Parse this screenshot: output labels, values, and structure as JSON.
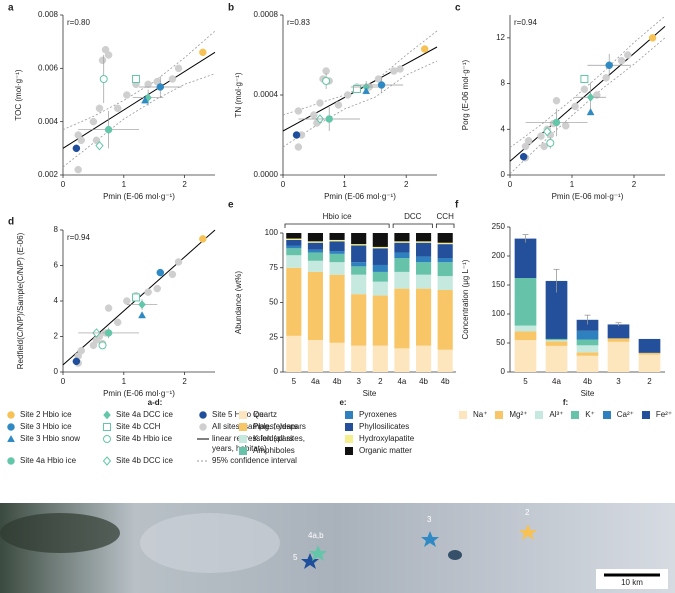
{
  "chart_data": [
    {
      "type": "scatter",
      "panel": "a",
      "annotation": "r=0.80",
      "xlabel": "Pmin (E-06 mol·g⁻¹)",
      "ylabel": "TOC (mol·g⁻¹)",
      "xlim": [
        0,
        2.5
      ],
      "xticks": [
        0,
        1,
        2
      ],
      "ylim": [
        0.002,
        0.008
      ],
      "yticks": [
        0.002,
        0.004,
        0.006,
        0.008
      ],
      "series": [
        {
          "x": [
            2.3
          ],
          "y": [
            0.0066
          ]
        },
        {
          "x": [
            1.6
          ],
          "y": [
            0.0053
          ],
          "xerr": [
            0.35
          ],
          "yerr": [
            0.0004
          ]
        },
        {
          "x": [
            1.35
          ],
          "y": [
            0.0048
          ]
        },
        {
          "x": [
            0.75
          ],
          "y": [
            0.0037
          ],
          "xerr": [
            0.5
          ],
          "yerr": [
            0.0007
          ]
        },
        {
          "x": [
            1.4
          ],
          "y": [
            0.0049
          ],
          "xerr": [
            0.25
          ],
          "yerr": [
            0.0003
          ]
        },
        {
          "x": [
            1.2
          ],
          "y": [
            0.0056
          ]
        },
        {
          "x": [
            0.67
          ],
          "y": [
            0.0056
          ],
          "yerr": [
            0.0009
          ]
        },
        {
          "x": [
            0.6
          ],
          "y": [
            0.0031
          ]
        },
        {
          "x": [
            0.22
          ],
          "y": [
            0.003
          ]
        },
        {
          "x": [
            0.25,
            0.3,
            0.55,
            0.6,
            0.65,
            0.7,
            0.75,
            0.9,
            1.05,
            1.2,
            1.4,
            1.55,
            1.8,
            1.9,
            0.25,
            0.5
          ],
          "y": [
            0.0035,
            0.0033,
            0.0033,
            0.0045,
            0.0063,
            0.0067,
            0.0065,
            0.0045,
            0.005,
            0.0054,
            0.0054,
            0.0055,
            0.0056,
            0.006,
            0.0022,
            0.004
          ]
        }
      ],
      "fit": {
        "x": [
          0,
          2.5
        ],
        "y": [
          0.003,
          0.0066
        ]
      },
      "ci": {
        "x": [
          0,
          0.5,
          1,
          1.5,
          2,
          2.5
        ],
        "lower": [
          0.0023,
          0.0032,
          0.0041,
          0.0048,
          0.0054,
          0.0058
        ],
        "upper": [
          0.0037,
          0.0042,
          0.0048,
          0.0055,
          0.0064,
          0.0074
        ]
      }
    },
    {
      "type": "scatter",
      "panel": "b",
      "annotation": "r=0.83",
      "xlabel": "Pmin (E-06 mol·g⁻¹)",
      "ylabel": "TN (mol·g⁻¹)",
      "xlim": [
        0,
        2.5
      ],
      "xticks": [
        0,
        1,
        2
      ],
      "ylim": [
        0,
        0.0008
      ],
      "yticks": [
        {
          "value": 0,
          "label": "0.0000"
        },
        0.0004,
        0.0008
      ],
      "series": [
        {
          "x": [
            2.3
          ],
          "y": [
            0.00063
          ]
        },
        {
          "x": [
            1.6
          ],
          "y": [
            0.00045
          ],
          "xerr": [
            0.35
          ],
          "yerr": [
            4e-05
          ]
        },
        {
          "x": [
            1.35
          ],
          "y": [
            0.00042
          ]
        },
        {
          "x": [
            0.75
          ],
          "y": [
            0.00028
          ],
          "xerr": [
            0.5
          ],
          "yerr": [
            6e-05
          ]
        },
        {
          "x": [
            1.35
          ],
          "y": [
            0.00044
          ],
          "xerr": [
            0.25
          ],
          "yerr": [
            3e-05
          ]
        },
        {
          "x": [
            1.2
          ],
          "y": [
            0.00043
          ]
        },
        {
          "x": [
            0.7
          ],
          "y": [
            0.00047
          ],
          "yerr": [
            4e-05
          ]
        },
        {
          "x": [
            0.6
          ],
          "y": [
            0.00028
          ]
        },
        {
          "x": [
            0.22
          ],
          "y": [
            0.0002
          ]
        },
        {
          "x": [
            0.25,
            0.3,
            0.55,
            0.6,
            0.65,
            0.7,
            0.75,
            0.9,
            1.05,
            1.2,
            1.4,
            1.55,
            1.8,
            1.9,
            0.25,
            0.5
          ],
          "y": [
            0.00032,
            0.0002,
            0.00026,
            0.00036,
            0.00048,
            0.00052,
            0.00047,
            0.00035,
            0.0004,
            0.00044,
            0.00044,
            0.00048,
            0.00052,
            0.00053,
            0.00014,
            0.0003
          ]
        }
      ],
      "fit": {
        "x": [
          0,
          2.5
        ],
        "y": [
          0.00022,
          0.00064
        ]
      },
      "ci": {
        "x": [
          0,
          0.5,
          1,
          1.5,
          2,
          2.5
        ],
        "lower": [
          0.00014,
          0.00024,
          0.00033,
          0.00039,
          0.0005,
          0.00057
        ],
        "upper": [
          0.0003,
          0.00035,
          0.0004,
          0.00047,
          0.0006,
          0.00072
        ]
      }
    },
    {
      "type": "scatter",
      "panel": "c",
      "annotation": "r=0.94",
      "xlabel": "Pmin (E-06 mol·g⁻¹)",
      "ylabel": "Porg (E-06 mol·g⁻¹)",
      "xlim": [
        0,
        2.5
      ],
      "xticks": [
        0,
        1,
        2
      ],
      "ylim": [
        0,
        14
      ],
      "yticks": [
        0,
        4,
        8,
        12
      ],
      "series": [
        {
          "x": [
            2.3
          ],
          "y": [
            12
          ]
        },
        {
          "x": [
            1.6
          ],
          "y": [
            9.6
          ],
          "xerr": [
            0.35
          ],
          "yerr": [
            1
          ]
        },
        {
          "x": [
            1.3
          ],
          "y": [
            5.5
          ]
        },
        {
          "x": [
            0.75
          ],
          "y": [
            4.6
          ],
          "xerr": [
            0.5
          ],
          "yerr": [
            1.2
          ]
        },
        {
          "x": [
            1.3
          ],
          "y": [
            6.8
          ],
          "xerr": [
            0.25
          ],
          "yerr": [
            1.3
          ]
        },
        {
          "x": [
            1.2
          ],
          "y": [
            8.4
          ]
        },
        {
          "x": [
            0.65
          ],
          "y": [
            2.8
          ],
          "yerr": [
            0.5
          ]
        },
        {
          "x": [
            0.6
          ],
          "y": [
            3.8
          ]
        },
        {
          "x": [
            0.22
          ],
          "y": [
            1.6
          ]
        },
        {
          "x": [
            0.25,
            0.3,
            0.55,
            0.6,
            0.65,
            0.7,
            0.75,
            0.9,
            1.05,
            1.2,
            1.4,
            1.55,
            1.8,
            1.9,
            0.25,
            0.5
          ],
          "y": [
            2.5,
            3,
            2.5,
            4,
            3.5,
            4.5,
            6.5,
            4.3,
            6,
            7.5,
            7,
            8.5,
            10,
            10.5,
            1.5,
            3.4
          ]
        }
      ],
      "fit": {
        "x": [
          0,
          2.5
        ],
        "y": [
          1.2,
          13
        ]
      },
      "ci": {
        "x": [
          0,
          0.5,
          1,
          1.5,
          2,
          2.5
        ],
        "lower": [
          0.1,
          2.7,
          5.2,
          7.6,
          9.7,
          12
        ],
        "upper": [
          2.4,
          4.4,
          6.6,
          9,
          11.6,
          13.9
        ]
      }
    },
    {
      "type": "scatter",
      "panel": "d",
      "annotation": "r=0.94",
      "xlabel": "Pmin (E-06 mol·g⁻¹)",
      "ylabel": "Redfield(C/N/P)/Sample(C/N/P) (E-06)",
      "xlim": [
        0,
        2.5
      ],
      "xticks": [
        0,
        1,
        2
      ],
      "ylim": [
        0,
        8
      ],
      "yticks": [
        0,
        2,
        4,
        6,
        8
      ],
      "series": [
        {
          "x": [
            2.3
          ],
          "y": [
            7.5
          ]
        },
        {
          "x": [
            1.6
          ],
          "y": [
            5.6
          ]
        },
        {
          "x": [
            1.3
          ],
          "y": [
            3.2
          ]
        },
        {
          "x": [
            0.75
          ],
          "y": [
            2.2
          ],
          "xerr": [
            0.5
          ],
          "yerr": [
            0.3
          ]
        },
        {
          "x": [
            1.3
          ],
          "y": [
            3.8
          ],
          "xerr": [
            0.25
          ],
          "yerr": [
            0.3
          ]
        },
        {
          "x": [
            1.2
          ],
          "y": [
            4.2
          ]
        },
        {
          "x": [
            0.65
          ],
          "y": [
            1.5
          ]
        },
        {
          "x": [
            0.55
          ],
          "y": [
            2.2
          ]
        },
        {
          "x": [
            0.22
          ],
          "y": [
            0.6
          ]
        },
        {
          "x": [
            0.25,
            0.3,
            0.55,
            0.6,
            0.65,
            0.7,
            0.75,
            0.9,
            1.05,
            1.2,
            1.4,
            1.55,
            1.8,
            1.9,
            0.25,
            0.5
          ],
          "y": [
            0.9,
            1.2,
            1.8,
            2,
            1.6,
            2.2,
            3.6,
            2.8,
            4,
            4.3,
            4.5,
            4.7,
            5.5,
            6.2,
            0.5,
            1.5
          ]
        }
      ],
      "fit": {
        "x": [
          0,
          2.5
        ],
        "y": [
          0.4,
          8
        ]
      }
    },
    {
      "type": "bar",
      "panel": "e",
      "xlabel": "Site",
      "ylabel": "Abundance (wt%)",
      "legend_title": "e:",
      "ylim": [
        0,
        100
      ],
      "yticks": [
        0,
        25,
        50,
        75,
        100
      ],
      "groups": [
        {
          "label": "Hbio ice",
          "categories": [
            "5",
            "4a",
            "4b",
            "3",
            "2"
          ]
        },
        {
          "label": "DCC",
          "categories": [
            "4a",
            "4b"
          ]
        },
        {
          "label": "CCH",
          "categories": [
            "4b"
          ]
        }
      ],
      "series": [
        {
          "name": "Quartz",
          "color": "#fde6bd",
          "values": [
            26,
            23,
            21,
            19,
            19,
            17,
            19,
            16
          ]
        },
        {
          "name": "Plag. feldspars",
          "color": "#f8c667",
          "values": [
            49,
            49,
            49,
            37,
            36,
            43,
            41,
            43
          ]
        },
        {
          "name": "K feldspars",
          "color": "#c5e9de",
          "values": [
            9,
            8,
            9,
            14,
            10,
            12,
            10,
            10
          ]
        },
        {
          "name": "Amphiboles",
          "color": "#66c3aa",
          "values": [
            5,
            6,
            6,
            6,
            7,
            10,
            9,
            10
          ]
        },
        {
          "name": "Pyroxenes",
          "color": "#2f80bf",
          "values": [
            2,
            2,
            2,
            3,
            5,
            4,
            4,
            3
          ]
        },
        {
          "name": "Phyllosilicates",
          "color": "#24509b",
          "values": [
            4,
            5,
            7,
            12,
            12,
            7,
            10,
            10
          ]
        },
        {
          "name": "Hydroxylapatite",
          "color": "#f4ee8c",
          "values": [
            1,
            1,
            1,
            1,
            1,
            1,
            1,
            1
          ]
        },
        {
          "name": "Organic matter",
          "color": "#111111",
          "values": [
            4,
            6,
            5,
            8,
            10,
            6,
            6,
            7
          ]
        }
      ]
    },
    {
      "type": "bar",
      "panel": "f",
      "xlabel": "Site",
      "ylabel": "Concentration (μg L⁻¹)",
      "legend_title": "f:",
      "ylim": [
        0,
        250
      ],
      "yticks": [
        0,
        50,
        100,
        150,
        200,
        250
      ],
      "categories": [
        "5",
        "4a",
        "4b",
        "3",
        "2"
      ],
      "series": [
        {
          "name": "Na⁺",
          "color": "#fde6bd",
          "values": [
            55,
            45,
            28,
            52,
            30
          ]
        },
        {
          "name": "Mg²⁺",
          "color": "#f8c667",
          "values": [
            15,
            8,
            6,
            6,
            3
          ]
        },
        {
          "name": "Al³⁺",
          "color": "#c5e9de",
          "values": [
            10,
            2,
            12,
            0,
            0
          ]
        },
        {
          "name": "K⁺",
          "color": "#66c3aa",
          "values": [
            82,
            2,
            10,
            0,
            0
          ]
        },
        {
          "name": "Ca²⁺",
          "color": "#2f80bf",
          "values": [
            0,
            0,
            15,
            0,
            0
          ]
        },
        {
          "name": "Fe²⁺",
          "color": "#24509b",
          "values": [
            68,
            100,
            19,
            24,
            24
          ],
          "yerr": [
            7,
            20,
            8,
            3,
            null
          ]
        }
      ]
    }
  ],
  "legend_ad": {
    "title": "a-d:",
    "entries": [
      {
        "name": "Site 2 Hbio ice",
        "color": "#f6c256",
        "marker": "circle"
      },
      {
        "name": "Site 3 Hbio ice",
        "color": "#2f8ac4",
        "marker": "circle"
      },
      {
        "name": "Site 3 Hbio snow",
        "color": "#2f8ac4",
        "marker": "triangle"
      },
      {
        "name": "Site 4a Hbio ice",
        "color": "#62c6a8",
        "marker": "circle"
      },
      {
        "name": "Site 4a DCC ice",
        "color": "#62c6a8",
        "marker": "diamond"
      },
      {
        "name": "Site 4b CCH",
        "color": "#62c6a8",
        "marker": "square",
        "open": true
      },
      {
        "name": "Site 4b Hbio ice",
        "color": "#62c6a8",
        "marker": "circle",
        "open": true
      },
      {
        "name": "Site 4b DCC ice",
        "color": "#62c6a8",
        "marker": "diamond",
        "open": true
      },
      {
        "name": "Site 5 Hbio ice",
        "color": "#1f4e9c",
        "marker": "circle"
      },
      {
        "name": "All sites, samples, years",
        "color": "#cfcfcf",
        "marker": "circle"
      },
      {
        "name": "linear regression (all sites, years, habitats)",
        "color": "#000000",
        "line": "solid"
      },
      {
        "name": "95% confidence interval",
        "color": "#999999",
        "line": "dashed"
      }
    ]
  },
  "map": {
    "sites": [
      {
        "label": "5"
      },
      {
        "label": "4a,b"
      },
      {
        "label": "3"
      },
      {
        "label": "2"
      }
    ],
    "scale": "10 km"
  }
}
